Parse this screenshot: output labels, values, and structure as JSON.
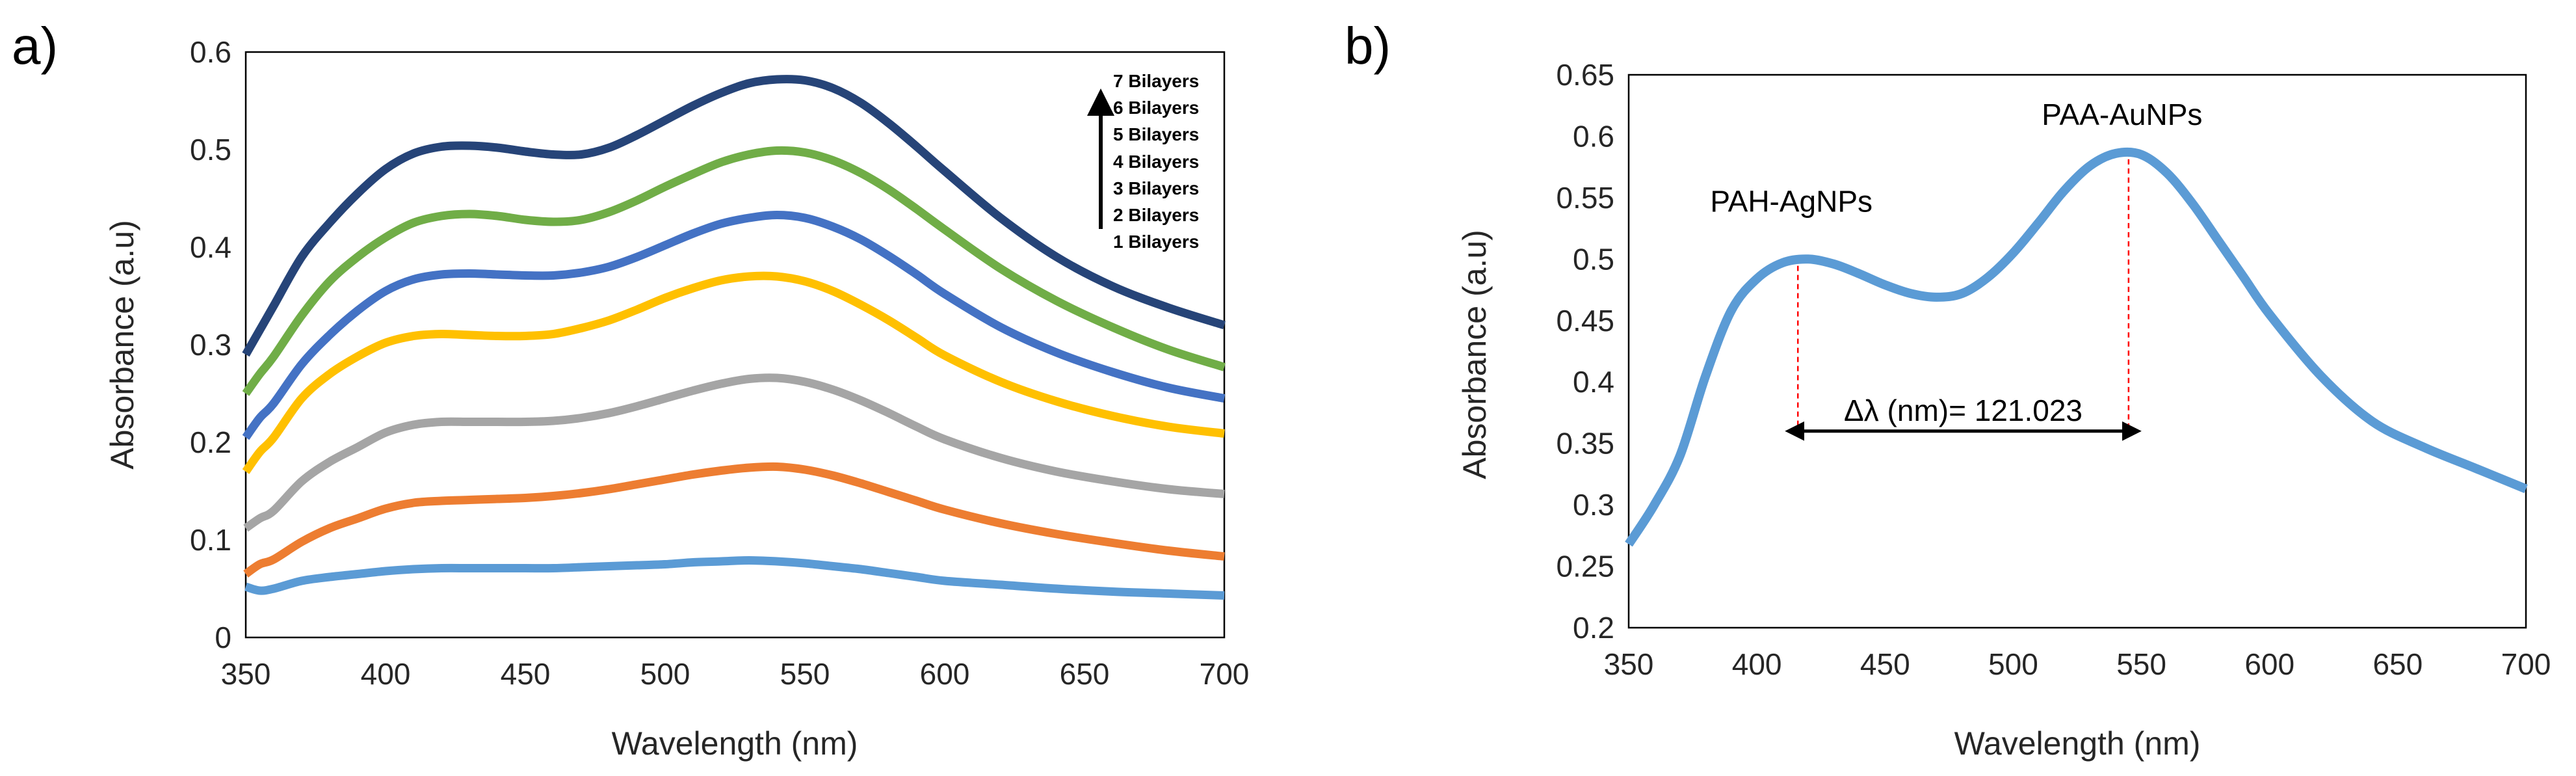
{
  "chart_data": [
    {
      "panel_label": "a)",
      "type": "line",
      "xlabel": "Wavelength (nm)",
      "ylabel": "Absorbance (a.u)",
      "xlim": [
        350,
        700
      ],
      "ylim": [
        0,
        0.6
      ],
      "x_ticks": [
        "350",
        "400",
        "450",
        "500",
        "550",
        "600",
        "650",
        "700"
      ],
      "y_ticks": [
        "0",
        "0.1",
        "0.2",
        "0.3",
        "0.4",
        "0.5",
        "0.6"
      ],
      "x": [
        350,
        355,
        360,
        370,
        380,
        390,
        400,
        410,
        420,
        430,
        440,
        450,
        460,
        470,
        480,
        490,
        500,
        510,
        520,
        530,
        540,
        550,
        560,
        570,
        580,
        590,
        600,
        620,
        640,
        660,
        680,
        700
      ],
      "series": [
        {
          "name": "1 Bilayers",
          "color": "#5B9BD5",
          "values": [
            0.052,
            0.048,
            0.05,
            0.058,
            0.062,
            0.065,
            0.068,
            0.07,
            0.071,
            0.071,
            0.071,
            0.071,
            0.071,
            0.072,
            0.073,
            0.074,
            0.075,
            0.077,
            0.078,
            0.079,
            0.078,
            0.076,
            0.073,
            0.07,
            0.066,
            0.062,
            0.058,
            0.054,
            0.05,
            0.047,
            0.045,
            0.043
          ]
        },
        {
          "name": "2 Bilayers",
          "color": "#ED7D31",
          "values": [
            0.065,
            0.075,
            0.08,
            0.098,
            0.112,
            0.122,
            0.132,
            0.138,
            0.14,
            0.141,
            0.142,
            0.143,
            0.145,
            0.148,
            0.152,
            0.157,
            0.162,
            0.167,
            0.171,
            0.174,
            0.175,
            0.172,
            0.166,
            0.158,
            0.149,
            0.14,
            0.131,
            0.117,
            0.106,
            0.097,
            0.089,
            0.083
          ]
        },
        {
          "name": "3 Bilayers",
          "color": "#A5A5A5",
          "values": [
            0.112,
            0.122,
            0.13,
            0.16,
            0.18,
            0.195,
            0.21,
            0.218,
            0.221,
            0.221,
            0.221,
            0.221,
            0.222,
            0.225,
            0.23,
            0.237,
            0.245,
            0.253,
            0.26,
            0.265,
            0.266,
            0.262,
            0.254,
            0.243,
            0.23,
            0.216,
            0.203,
            0.184,
            0.17,
            0.16,
            0.152,
            0.147
          ]
        },
        {
          "name": "4 Bilayers",
          "color": "#FFC000",
          "values": [
            0.17,
            0.19,
            0.205,
            0.245,
            0.27,
            0.288,
            0.302,
            0.309,
            0.311,
            0.31,
            0.309,
            0.309,
            0.311,
            0.317,
            0.325,
            0.336,
            0.348,
            0.358,
            0.366,
            0.37,
            0.37,
            0.365,
            0.355,
            0.341,
            0.325,
            0.307,
            0.289,
            0.262,
            0.242,
            0.227,
            0.216,
            0.209
          ]
        },
        {
          "name": "5 Bilayers",
          "color": "#4472C4",
          "values": [
            0.205,
            0.225,
            0.24,
            0.28,
            0.31,
            0.335,
            0.355,
            0.367,
            0.372,
            0.373,
            0.372,
            0.371,
            0.371,
            0.374,
            0.38,
            0.39,
            0.402,
            0.414,
            0.424,
            0.43,
            0.433,
            0.43,
            0.421,
            0.408,
            0.391,
            0.372,
            0.352,
            0.318,
            0.292,
            0.272,
            0.256,
            0.245
          ]
        },
        {
          "name": "6 Bilayers",
          "color": "#70AD47",
          "values": [
            0.25,
            0.27,
            0.288,
            0.33,
            0.365,
            0.39,
            0.41,
            0.425,
            0.432,
            0.434,
            0.432,
            0.428,
            0.426,
            0.428,
            0.436,
            0.448,
            0.462,
            0.475,
            0.487,
            0.495,
            0.499,
            0.497,
            0.489,
            0.476,
            0.459,
            0.439,
            0.418,
            0.378,
            0.345,
            0.318,
            0.295,
            0.277
          ]
        },
        {
          "name": "7 Bilayers",
          "color": "#264478",
          "values": [
            0.29,
            0.315,
            0.34,
            0.39,
            0.425,
            0.455,
            0.48,
            0.496,
            0.503,
            0.504,
            0.502,
            0.498,
            0.495,
            0.495,
            0.502,
            0.515,
            0.53,
            0.545,
            0.558,
            0.568,
            0.572,
            0.571,
            0.563,
            0.548,
            0.527,
            0.503,
            0.478,
            0.43,
            0.39,
            0.36,
            0.338,
            0.32
          ]
        }
      ],
      "legend": [
        "7 Bilayers",
        "6 Bilayers",
        "5 Bilayers",
        "4 Bilayers",
        "3 Bilayers",
        "2 Bilayers",
        "1 Bilayers"
      ],
      "legend_placement": "top-right"
    },
    {
      "panel_label": "b)",
      "type": "line",
      "xlabel": "Wavelength (nm)",
      "ylabel": "Absorbance (a.u)",
      "xlim": [
        350,
        700
      ],
      "ylim": [
        0.2,
        0.65
      ],
      "x_ticks": [
        "350",
        "400",
        "450",
        "500",
        "550",
        "600",
        "650",
        "700"
      ],
      "y_ticks": [
        "0.2",
        "0.25",
        "0.3",
        "0.35",
        "0.4",
        "0.45",
        "0.5",
        "0.55",
        "0.6",
        "0.65"
      ],
      "x": [
        350,
        360,
        370,
        380,
        390,
        400,
        410,
        420,
        430,
        440,
        450,
        460,
        470,
        480,
        490,
        500,
        510,
        520,
        530,
        540,
        550,
        560,
        570,
        580,
        590,
        600,
        620,
        640,
        660,
        680,
        700
      ],
      "series": [
        {
          "name": "spectrum",
          "color": "#5B9BD5",
          "values": [
            0.268,
            0.3,
            0.34,
            0.405,
            0.458,
            0.484,
            0.497,
            0.5,
            0.496,
            0.488,
            0.479,
            0.472,
            0.469,
            0.472,
            0.485,
            0.505,
            0.53,
            0.556,
            0.576,
            0.586,
            0.585,
            0.57,
            0.545,
            0.515,
            0.485,
            0.455,
            0.405,
            0.368,
            0.347,
            0.33,
            0.313
          ]
        }
      ],
      "annotations": {
        "peak1_label": "PAH-AgNPs",
        "peak2_label": "PAA-AuNPs",
        "peak1_x": 416,
        "peak2_x": 545,
        "arrow_y": 0.36,
        "delta_label": "Δλ (nm)= 121.023"
      }
    }
  ]
}
